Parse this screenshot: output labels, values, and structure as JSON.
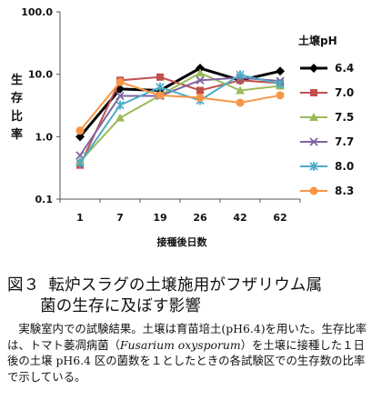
{
  "chart_data": {
    "type": "line",
    "categories": [
      "1",
      "7",
      "19",
      "26",
      "42",
      "62"
    ],
    "xlabel": "接種後日数",
    "ylabel": "生存比率",
    "yscale": "log",
    "ylim": [
      0.1,
      100
    ],
    "yticks": [
      "0.1",
      "1.0",
      "10.0",
      "100.0"
    ],
    "grid": false,
    "legend_title": "土壌pH",
    "legend_position": "right",
    "series": [
      {
        "name": "6.4",
        "color": "#000000",
        "marker": "diamond",
        "values": [
          1.0,
          5.8,
          5.5,
          12.5,
          8.0,
          11.2
        ]
      },
      {
        "name": "7.0",
        "color": "#c0504d",
        "marker": "square",
        "values": [
          0.35,
          8.0,
          9.0,
          5.5,
          8.0,
          7.2
        ]
      },
      {
        "name": "7.5",
        "color": "#9bbb59",
        "marker": "triangle",
        "values": [
          0.4,
          2.0,
          4.6,
          10.5,
          5.5,
          6.5
        ]
      },
      {
        "name": "7.7",
        "color": "#8064a2",
        "marker": "x",
        "values": [
          0.5,
          4.5,
          4.5,
          8.0,
          8.8,
          7.8
        ]
      },
      {
        "name": "8.0",
        "color": "#4bacc6",
        "marker": "star",
        "values": [
          0.38,
          3.2,
          6.2,
          3.8,
          9.8,
          7.0
        ]
      },
      {
        "name": "8.3",
        "color": "#f79646",
        "marker": "circle",
        "values": [
          1.25,
          7.5,
          4.6,
          4.2,
          3.5,
          4.6
        ]
      }
    ]
  },
  "caption": {
    "figure_number": "図３",
    "title_line1": "転炉スラグの土壌施用がフザリウム属",
    "title_line2": "菌の生存に及ぼす影響",
    "body_part1": "実験室内での試験結果。土壌は育苗培土(pH6.4)を用いた。生存比率は、トマト萎凋病菌（",
    "body_italic": "Fusarium oxysporum",
    "body_part2": "）を土壌に接種した１日後の土壌 pH6.4 区の菌数を１としたときの各試験区での生存数の比率で示している。"
  }
}
